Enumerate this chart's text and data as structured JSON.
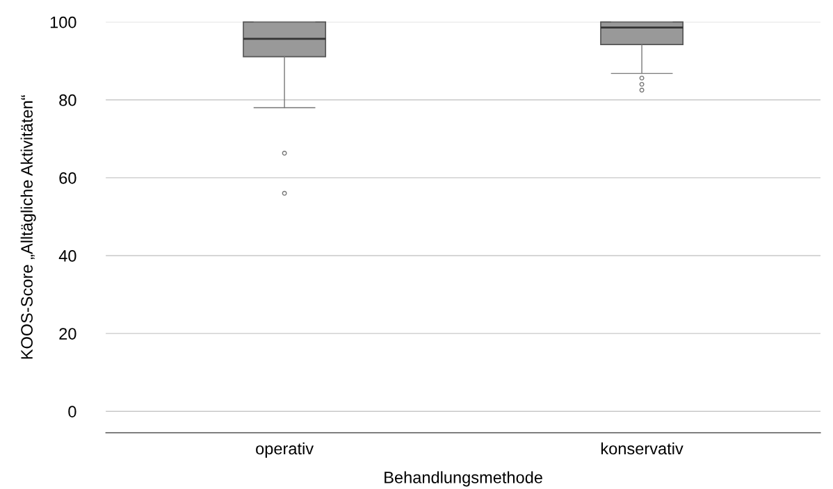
{
  "chart_data": {
    "type": "box",
    "xlabel": "Behandlungsmethode",
    "ylabel": "KOOS-Score „Alltägliche Aktivitäten“",
    "categories": [
      "operativ",
      "konservativ"
    ],
    "boxes": [
      {
        "low": 78.0,
        "q1": 91.1,
        "median": 95.7,
        "q3": 100,
        "high": 100,
        "outliers": [
          66.3,
          56.0
        ]
      },
      {
        "low": 86.8,
        "q1": 94.2,
        "median": 98.6,
        "q3": 100,
        "high": 100,
        "outliers": [
          85.6,
          84.0,
          82.5
        ]
      }
    ],
    "color": "#999999",
    "ylim": [
      -5.5,
      100
    ],
    "yticks": [
      0,
      20,
      40,
      60,
      80,
      100
    ],
    "grid": "y"
  }
}
